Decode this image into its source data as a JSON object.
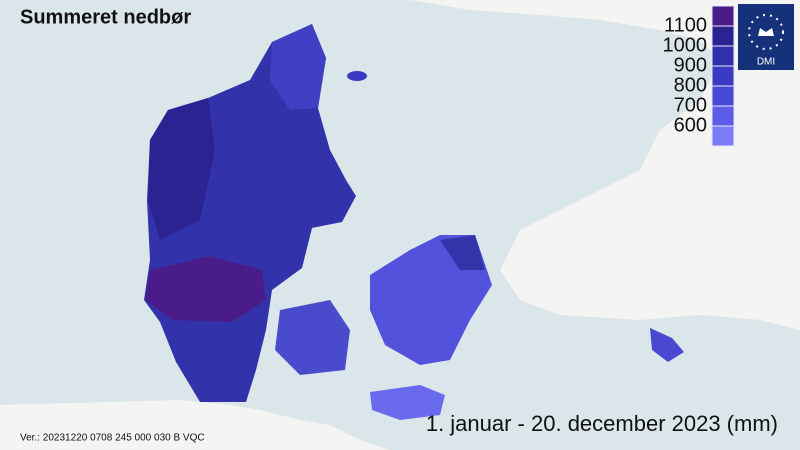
{
  "header": {
    "title": "Summeret nedbør"
  },
  "legend": {
    "colors": [
      "#4a1c8a",
      "#2b2392",
      "#3030aa",
      "#3a3ac2",
      "#4848d6",
      "#5c5ce8",
      "#7c7cf6"
    ],
    "labels": [
      1100,
      1000,
      900,
      800,
      700,
      600
    ]
  },
  "logo": {
    "text": "DMI"
  },
  "caption": "1. januar - 20. december 2023 (mm)",
  "version": "Ver.: 20231220 0708 245 000 030 B VQC"
}
